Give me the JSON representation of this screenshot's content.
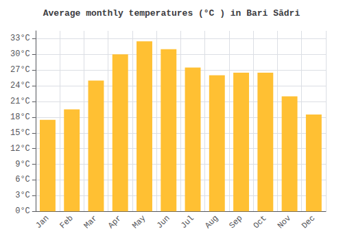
{
  "chart_data": {
    "type": "bar",
    "title": "Average monthly temperatures (°C ) in Bari Sādri",
    "categories": [
      "Jan",
      "Feb",
      "Mar",
      "Apr",
      "May",
      "Jun",
      "Jul",
      "Aug",
      "Sep",
      "Oct",
      "Nov",
      "Dec"
    ],
    "values": [
      17.5,
      19.5,
      25.0,
      30.0,
      32.5,
      31.0,
      27.5,
      26.0,
      26.5,
      26.5,
      22.0,
      18.5
    ],
    "color": "#FFC033",
    "ylim": [
      0,
      34.5
    ],
    "yticks": [
      {
        "value": 0,
        "label": "0°C"
      },
      {
        "value": 3,
        "label": "3°C"
      },
      {
        "value": 6,
        "label": "6°C"
      },
      {
        "value": 9,
        "label": "9°C"
      },
      {
        "value": 12,
        "label": "12°C"
      },
      {
        "value": 15,
        "label": "15°C"
      },
      {
        "value": 18,
        "label": "18°C"
      },
      {
        "value": 21,
        "label": "21°C"
      },
      {
        "value": 24,
        "label": "24°C"
      },
      {
        "value": 27,
        "label": "27°C"
      },
      {
        "value": 30,
        "label": "30°C"
      },
      {
        "value": 33,
        "label": "33°C"
      }
    ],
    "grid": true
  }
}
